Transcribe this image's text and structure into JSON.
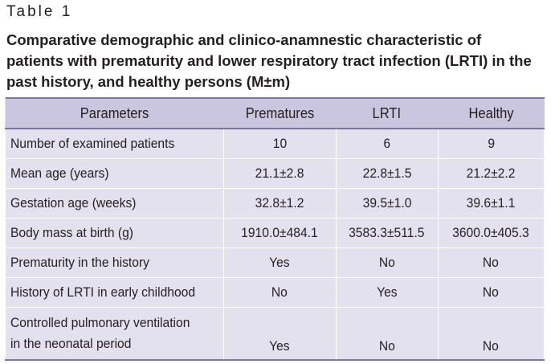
{
  "table_label": "Table 1",
  "caption": "Comparative demographic and clinico-anamnestic characteristic of patients with prematurity and lower respiratory tract infection (LRTI) in the past history, and healthy persons (M±m)",
  "columns": [
    "Parameters",
    "Prematures",
    "LRTI",
    "Healthy"
  ],
  "rows": [
    {
      "parameter": "Number of examined patients",
      "prematures": "10",
      "lrti": "6",
      "healthy": "9"
    },
    {
      "parameter": "Mean age (years)",
      "prematures": "21.1±2.8",
      "lrti": "22.8±1.5",
      "healthy": "21.2±2.2"
    },
    {
      "parameter": "Gestation age (weeks)",
      "prematures": "32.8±1.2",
      "lrti": "39.5±1.0",
      "healthy": "39.6±1.1"
    },
    {
      "parameter": "Body mass at birth (g)",
      "prematures": "1910.0±484.1",
      "lrti": "3583.3±511.5",
      "healthy": "3600.0±405.3"
    },
    {
      "parameter": "Prematurity in the history",
      "prematures": "Yes",
      "lrti": "No",
      "healthy": "No"
    },
    {
      "parameter": "History of LRTI in early childhood",
      "prematures": "No",
      "lrti": "Yes",
      "healthy": "No"
    },
    {
      "parameter_lines": [
        "Controlled pulmonary ventilation",
        "in the neonatal period"
      ],
      "prematures": "Yes",
      "lrti": "No",
      "healthy": "No"
    }
  ],
  "colors": {
    "header_bg": "#cbc6df",
    "body_bg": "#e4e1ef",
    "rule": "#7c74a5",
    "text": "#231f20"
  }
}
